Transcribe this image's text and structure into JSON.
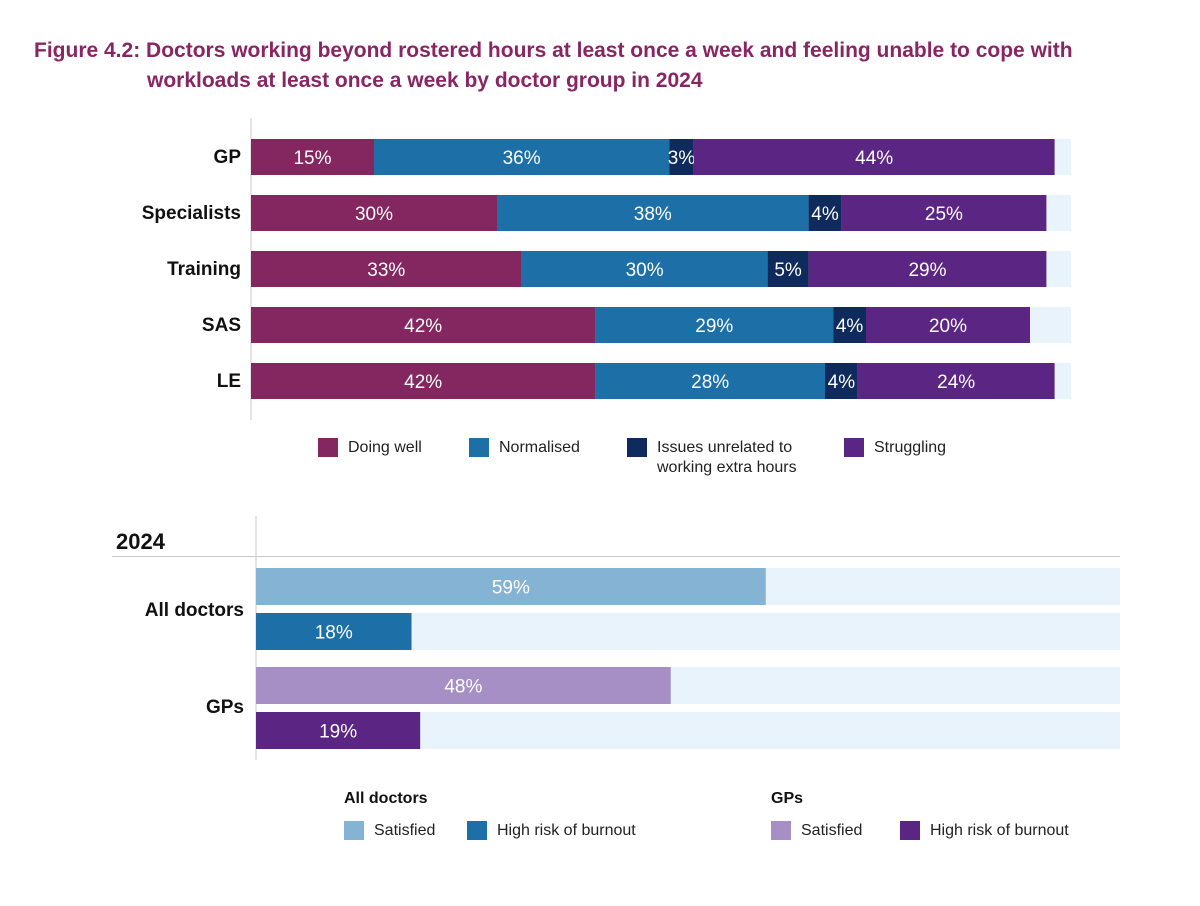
{
  "figure": {
    "title_prefix": "Figure 4.2:",
    "title_line1": "Doctors working beyond rostered hours at least once a week and feeling unable to cope with",
    "title_line2": "workloads at least once a week by doctor group in 2024"
  },
  "colors": {
    "doing_well": "#84265f",
    "normalised": "#1d6fa8",
    "issues": "#0f2a5c",
    "struggling": "#5b2583",
    "track": "#e8f3fc",
    "all_satisfied": "#84b3d4",
    "all_burnout": "#1d6fa8",
    "gp_satisfied": "#a58fc4",
    "gp_burnout": "#5b2583"
  },
  "chart_data": [
    {
      "type": "bar",
      "orientation": "horizontal",
      "stacked": true,
      "categories": [
        "GP",
        "Specialists",
        "Training",
        "SAS",
        "LE"
      ],
      "series": [
        {
          "name": "Doing well",
          "color_key": "doing_well",
          "values": [
            15,
            30,
            33,
            42,
            42
          ],
          "labels": [
            "15%",
            "30%",
            "33%",
            "42%",
            "42%"
          ]
        },
        {
          "name": "Normalised",
          "color_key": "normalised",
          "values": [
            36,
            38,
            30,
            29,
            28
          ],
          "labels": [
            "36%",
            "38%",
            "30%",
            "29%",
            "28%"
          ]
        },
        {
          "name": "Issues unrelated to working extra hours",
          "color_key": "issues",
          "values": [
            3,
            4,
            5,
            4,
            4
          ],
          "labels": [
            "3%",
            "4%",
            "5%",
            "4%",
            "4%"
          ]
        },
        {
          "name": "Struggling",
          "color_key": "struggling",
          "values": [
            44,
            25,
            29,
            20,
            24
          ],
          "labels": [
            "44%",
            "25%",
            "29%",
            "20%",
            "24%"
          ]
        }
      ],
      "xlim": [
        0,
        100
      ],
      "legend": [
        {
          "label": "Doing well",
          "color_key": "doing_well"
        },
        {
          "label": "Normalised",
          "color_key": "normalised"
        },
        {
          "label": "Issues unrelated to working extra hours",
          "color_key": "issues",
          "line1": "Issues unrelated to",
          "line2": "working extra hours"
        },
        {
          "label": "Struggling",
          "color_key": "struggling"
        }
      ],
      "legend_position": "bottom"
    },
    {
      "type": "bar",
      "orientation": "horizontal",
      "title": "2024",
      "groups": [
        {
          "label": "All doctors",
          "bars": [
            {
              "name": "Satisfied",
              "value": 59,
              "label": "59%",
              "color_key": "all_satisfied"
            },
            {
              "name": "High risk of burnout",
              "value": 18,
              "label": "18%",
              "color_key": "all_burnout"
            }
          ]
        },
        {
          "label": "GPs",
          "bars": [
            {
              "name": "Satisfied",
              "value": 48,
              "label": "48%",
              "color_key": "gp_satisfied"
            },
            {
              "name": "High risk of burnout",
              "value": 19,
              "label": "19%",
              "color_key": "gp_burnout"
            }
          ]
        }
      ],
      "xlim": [
        0,
        100
      ],
      "legend": [
        {
          "heading": "All doctors",
          "items": [
            {
              "label": "Satisfied",
              "color_key": "all_satisfied"
            },
            {
              "label": "High risk of burnout",
              "color_key": "all_burnout"
            }
          ]
        },
        {
          "heading": "GPs",
          "items": [
            {
              "label": "Satisfied",
              "color_key": "gp_satisfied"
            },
            {
              "label": "High risk of burnout",
              "color_key": "gp_burnout"
            }
          ]
        }
      ],
      "legend_position": "bottom"
    }
  ]
}
